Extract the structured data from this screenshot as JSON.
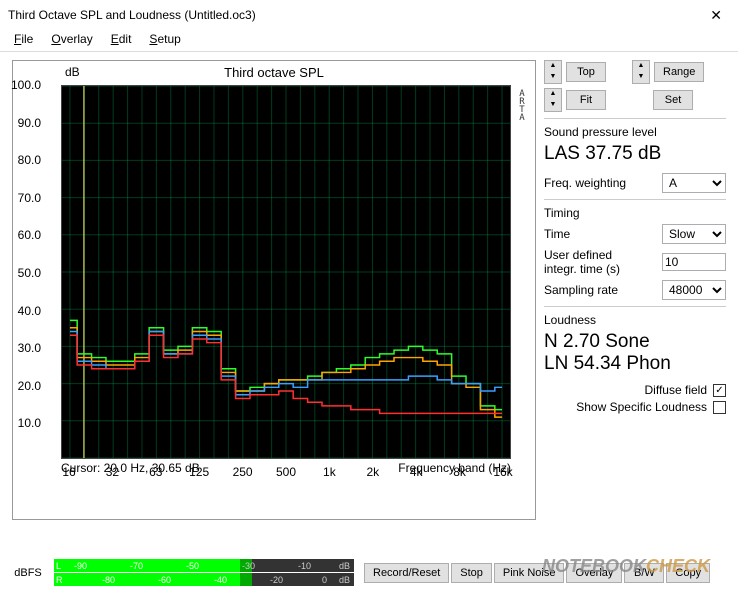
{
  "window": {
    "title": "Third Octave SPL and Loudness (Untitled.oc3)"
  },
  "menu": {
    "file": "File",
    "overlay": "Overlay",
    "edit": "Edit",
    "setup": "Setup"
  },
  "chart": {
    "type": "step-line",
    "title": "Third octave SPL",
    "yunit": "dB",
    "xunit": "Frequency band (Hz)",
    "cursor": "Cursor:    20.0 Hz, 30.65 dB",
    "watermark_label": "ARTA",
    "background_color": "#000000",
    "grid_color": "#009955",
    "ylim": [
      0,
      100
    ],
    "ytick_step": 10,
    "xticks": [
      16,
      32,
      63,
      125,
      250,
      500,
      "1k",
      "2k",
      "4k",
      "8k",
      "16k"
    ],
    "series": [
      {
        "color": "#2aff2a",
        "values": [
          37,
          28,
          27,
          26,
          26,
          28,
          35,
          29,
          30,
          35,
          34,
          24,
          18,
          19,
          20,
          21,
          21,
          22,
          23,
          24,
          25,
          27,
          28,
          29,
          30,
          29,
          28,
          22,
          20,
          14,
          13
        ]
      },
      {
        "color": "#ffa500",
        "values": [
          35,
          27,
          26,
          25,
          25,
          27,
          34,
          28,
          29,
          34,
          33,
          23,
          18,
          18,
          20,
          21,
          21,
          21,
          23,
          23,
          24,
          25,
          26,
          27,
          27,
          26,
          25,
          20,
          19,
          13,
          11
        ]
      },
      {
        "color": "#3aa0ff",
        "values": [
          34,
          26,
          25,
          24,
          24,
          26,
          34,
          28,
          28,
          33,
          32,
          22,
          17,
          18,
          19,
          20,
          19,
          21,
          21,
          21,
          21,
          21,
          21,
          21,
          22,
          22,
          21,
          20,
          20,
          18,
          19
        ]
      },
      {
        "color": "#ff3030",
        "values": [
          33,
          25,
          24,
          24,
          24,
          26,
          33,
          27,
          28,
          32,
          31,
          21,
          16,
          17,
          17,
          18,
          16,
          15,
          14,
          14,
          13,
          13,
          12,
          12,
          12,
          12,
          12,
          12,
          12,
          12,
          12
        ]
      }
    ]
  },
  "controls": {
    "top_btn": "Top",
    "fit_btn": "Fit",
    "range_btn": "Range",
    "set_btn": "Set",
    "spl_label": "Sound pressure level",
    "spl_value": "LAS 37.75 dB",
    "freq_weight_label": "Freq. weighting",
    "freq_weight_value": "A",
    "timing_label": "Timing",
    "time_label": "Time",
    "time_value": "Slow",
    "integr_label": "User defined integr. time (s)",
    "integr_value": "10",
    "sampling_label": "Sampling rate",
    "sampling_value": "48000",
    "loudness_label": "Loudness",
    "loudness_n": "N 2.70 Sone",
    "loudness_ln": "LN 54.34 Phon",
    "diffuse_label": "Diffuse field",
    "diffuse_checked": true,
    "show_spec_label": "Show Specific Loudness",
    "show_spec_checked": false
  },
  "bottom": {
    "dbfs": "dBFS",
    "meter_ticks_L": [
      "-90",
      "-70",
      "-50",
      "-30",
      "-10",
      "dB"
    ],
    "meter_ticks_R": [
      "-80",
      "-60",
      "-40",
      "-20",
      "0",
      "dB"
    ],
    "buttons": {
      "record": "Record/Reset",
      "stop": "Stop",
      "pink": "Pink Noise",
      "overlay": "Overlay",
      "bw": "B/W",
      "copy": "Copy"
    }
  },
  "watermark": {
    "a": "NOTEBOOK",
    "b": "CHECK"
  }
}
